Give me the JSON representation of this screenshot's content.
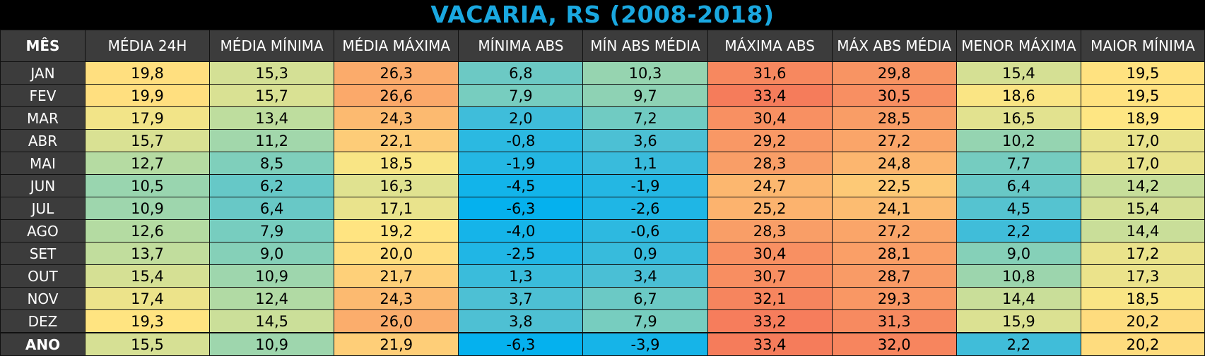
{
  "title": "VACARIA, RS (2008-2018)",
  "chart_data": {
    "type": "table",
    "title": "VACARIA, RS (2008-2018)",
    "columns": [
      "MÊS",
      "MÉDIA 24H",
      "MÉDIA MÍNIMA",
      "MÉDIA MÁXIMA",
      "MÍNIMA ABS",
      "MÍN ABS MÉDIA",
      "MÁXIMA ABS",
      "MÁX ABS MÉDIA",
      "MENOR MÁXIMA",
      "MAIOR MÍNIMA"
    ],
    "rows": [
      [
        "JAN",
        "19,8",
        "15,3",
        "26,3",
        "6,8",
        "10,3",
        "31,6",
        "29,8",
        "15,4",
        "19,5"
      ],
      [
        "FEV",
        "19,9",
        "15,7",
        "26,6",
        "7,9",
        "9,7",
        "33,4",
        "30,5",
        "18,6",
        "19,5"
      ],
      [
        "MAR",
        "17,9",
        "13,4",
        "24,3",
        "2,0",
        "7,2",
        "30,4",
        "28,5",
        "16,5",
        "18,9"
      ],
      [
        "ABR",
        "15,7",
        "11,2",
        "22,1",
        "-0,8",
        "3,6",
        "29,2",
        "27,2",
        "10,2",
        "17,0"
      ],
      [
        "MAI",
        "12,7",
        "8,5",
        "18,5",
        "-1,9",
        "1,1",
        "28,3",
        "24,8",
        "7,7",
        "17,0"
      ],
      [
        "JUN",
        "10,5",
        "6,2",
        "16,3",
        "-4,5",
        "-1,9",
        "24,7",
        "22,5",
        "6,4",
        "14,2"
      ],
      [
        "JUL",
        "10,9",
        "6,4",
        "17,1",
        "-6,3",
        "-2,6",
        "25,2",
        "24,1",
        "4,5",
        "15,4"
      ],
      [
        "AGO",
        "12,6",
        "7,9",
        "19,2",
        "-4,0",
        "-0,6",
        "28,3",
        "27,2",
        "2,2",
        "14,4"
      ],
      [
        "SET",
        "13,7",
        "9,0",
        "20,0",
        "-2,5",
        "0,9",
        "30,4",
        "28,1",
        "9,0",
        "17,2"
      ],
      [
        "OUT",
        "15,4",
        "10,9",
        "21,7",
        "1,3",
        "3,4",
        "30,7",
        "28,7",
        "10,8",
        "17,3"
      ],
      [
        "NOV",
        "17,4",
        "12,4",
        "24,3",
        "3,7",
        "6,7",
        "32,1",
        "29,3",
        "14,4",
        "18,5"
      ],
      [
        "DEZ",
        "19,3",
        "14,5",
        "26,0",
        "3,8",
        "7,9",
        "33,2",
        "31,3",
        "15,9",
        "20,2"
      ],
      [
        "ANO",
        "15,5",
        "10,9",
        "21,9",
        "-6,3",
        "-3,9",
        "33,4",
        "32,0",
        "2,2",
        "20,2"
      ]
    ]
  }
}
